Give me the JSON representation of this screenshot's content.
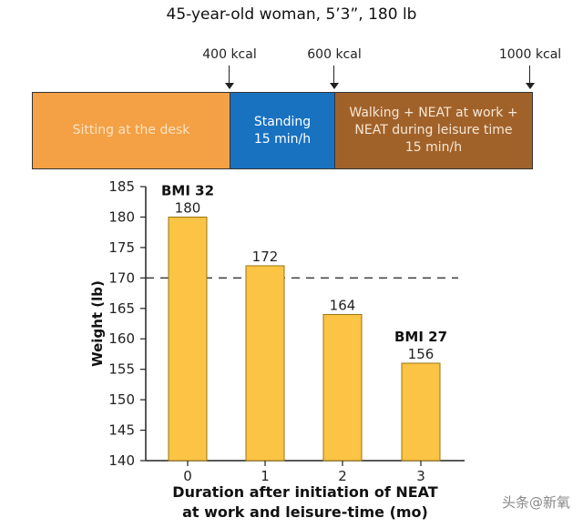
{
  "header": {
    "title": "45-year-old woman, 5’3”, 180 lb",
    "kcal_markers": [
      {
        "label": "400 kcal"
      },
      {
        "label": "600 kcal"
      },
      {
        "label": "1000 kcal"
      }
    ],
    "segments": [
      {
        "label": "Sitting at the desk",
        "color": "#f4a045"
      },
      {
        "label": "Standing\n15 min/h",
        "color": "#1872c0"
      },
      {
        "label": "Walking + NEAT at work +\nNEAT during leisure time\n15 min/h",
        "color": "#a1622a"
      }
    ]
  },
  "chart_data": {
    "type": "bar",
    "categories": [
      "0",
      "1",
      "2",
      "3"
    ],
    "values": [
      180,
      172,
      164,
      156
    ],
    "value_labels": [
      "180",
      "172",
      "164",
      "156"
    ],
    "annotations": [
      {
        "category": "0",
        "text": "BMI 32"
      },
      {
        "category": "3",
        "text": "BMI 27"
      }
    ],
    "reference_line": 170,
    "xlabel": "Duration after initiation of NEAT\nat work and leisure-time (mo)",
    "ylabel": "Weight (lb)",
    "ylim": [
      140,
      185
    ],
    "yticks": [
      140,
      145,
      150,
      155,
      160,
      165,
      170,
      175,
      180,
      185
    ],
    "bar_color": "#fbc444",
    "grid": false
  },
  "watermark": "头条@新氧"
}
